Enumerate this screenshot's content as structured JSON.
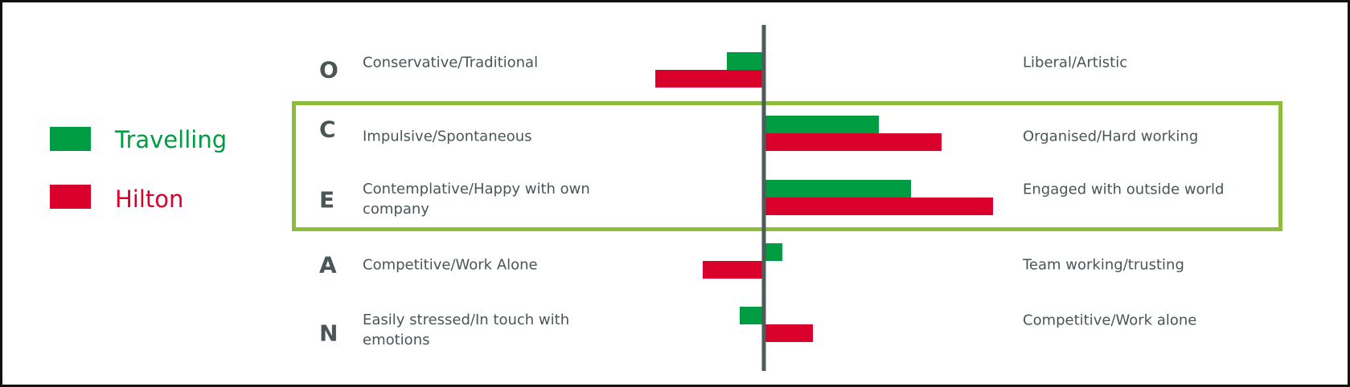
{
  "legend": [
    {
      "name": "Travelling",
      "color": "#009c41"
    },
    {
      "name": "Hilton",
      "color": "#d9002b"
    }
  ],
  "highlight_color": "#8dbd3a",
  "chart_data": {
    "type": "bar",
    "orientation": "horizontal-diverging",
    "categories": [
      "O",
      "C",
      "E",
      "A",
      "N"
    ],
    "left_labels": [
      "Conservative/Traditional",
      "Impulsive/Spontaneous",
      "Contemplative/Happy with own company",
      "Competitive/Work Alone",
      "Easily stressed/In touch with emotions"
    ],
    "right_labels": [
      "Liberal/Artistic",
      "Organised/Hard working",
      "Engaged with outside world",
      "Team working/trusting",
      "Competitive/Work alone"
    ],
    "series": [
      {
        "name": "Travelling",
        "color": "#009c41",
        "values": [
          -0.46,
          1.43,
          1.83,
          0.23,
          -0.3
        ]
      },
      {
        "name": "Hilton",
        "color": "#d9002b",
        "values": [
          -1.35,
          2.21,
          2.85,
          -0.76,
          0.61
        ]
      }
    ],
    "highlighted_categories": [
      "C",
      "E"
    ],
    "axis_ticks": false,
    "grid": false,
    "legend_position": "left"
  }
}
